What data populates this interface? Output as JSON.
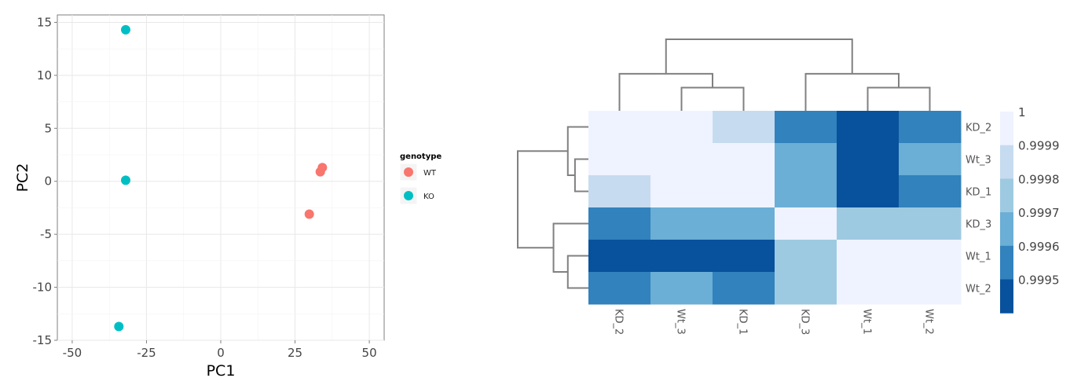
{
  "chart_data": [
    {
      "type": "scatter",
      "xlabel": "PC1",
      "ylabel": "PC2",
      "xlim": [
        -55,
        55
      ],
      "ylim": [
        -15,
        15.7
      ],
      "xticks": [
        -50,
        -25,
        0,
        25,
        50
      ],
      "yticks": [
        -15,
        -10,
        -5,
        0,
        5,
        10,
        15
      ],
      "grid": true,
      "legend": {
        "title": "genotype",
        "placement": "right"
      },
      "series": [
        {
          "name": "WT",
          "color": "#F8766D",
          "points": [
            {
              "x": 34.2,
              "y": 1.3
            },
            {
              "x": 33.5,
              "y": 0.9
            },
            {
              "x": 29.8,
              "y": -3.1
            }
          ]
        },
        {
          "name": "KO",
          "color": "#00BFC4",
          "points": [
            {
              "x": -32.0,
              "y": 14.3
            },
            {
              "x": -32.0,
              "y": 0.1
            },
            {
              "x": -34.3,
              "y": -13.7
            }
          ]
        }
      ]
    },
    {
      "type": "heatmap",
      "columns": [
        "KD_2",
        "Wt_3",
        "KD_1",
        "KD_3",
        "Wt_1",
        "Wt_2"
      ],
      "rows": [
        "KD_2",
        "Wt_3",
        "KD_1",
        "KD_3",
        "Wt_1",
        "Wt_2"
      ],
      "values": [
        [
          1.0,
          1.0,
          0.9999,
          0.9996,
          0.9995,
          0.9996
        ],
        [
          1.0,
          1.0,
          1.0,
          0.9997,
          0.9995,
          0.9997
        ],
        [
          0.9999,
          1.0,
          1.0,
          0.9997,
          0.9995,
          0.9996
        ],
        [
          0.9996,
          0.9997,
          0.9997,
          1.0,
          0.9998,
          0.9998
        ],
        [
          0.9995,
          0.9995,
          0.9995,
          0.9998,
          1.0,
          1.0
        ],
        [
          0.9996,
          0.9997,
          0.9996,
          0.9998,
          1.0,
          1.0
        ]
      ],
      "color_scale": [
        {
          "label": "1",
          "value": 1.0,
          "color": "#EFF3FF"
        },
        {
          "label": "0.9999",
          "value": 0.9999,
          "color": "#C6DBEF"
        },
        {
          "label": "0.9998",
          "value": 0.9998,
          "color": "#9ECAE1"
        },
        {
          "label": "0.9997",
          "value": 0.9997,
          "color": "#6BAED6"
        },
        {
          "label": "0.9996",
          "value": 0.9996,
          "color": "#3182BD"
        },
        {
          "label": "0.9995",
          "value": 0.9995,
          "color": "#08519C"
        }
      ],
      "column_dendrogram": [
        {
          "a": 1,
          "b": 2,
          "h": 1
        },
        {
          "a": 0,
          "b": 6,
          "h": 2
        },
        {
          "a": 4,
          "b": 5,
          "h": 1
        },
        {
          "a": 3,
          "b": 8,
          "h": 2
        },
        {
          "a": 7,
          "b": 9,
          "h": 4.5
        }
      ],
      "row_dendrogram": [
        {
          "a": 1,
          "b": 2,
          "h": 0.5
        },
        {
          "a": 0,
          "b": 6,
          "h": 1
        },
        {
          "a": 4,
          "b": 5,
          "h": 1
        },
        {
          "a": 3,
          "b": 8,
          "h": 2
        },
        {
          "a": 7,
          "b": 9,
          "h": 4.5
        }
      ]
    }
  ]
}
